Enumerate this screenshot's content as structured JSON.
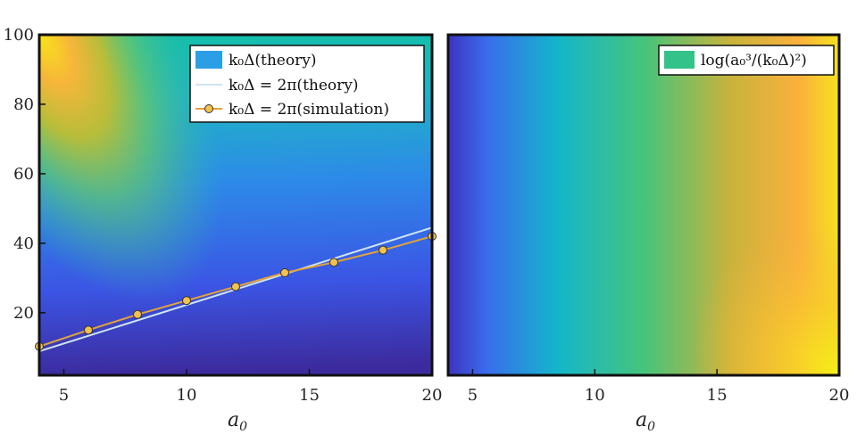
{
  "chart_data": [
    {
      "type": "heatmap",
      "panel": "left",
      "xlabel": "a",
      "xlabel_sub": "0",
      "xlim": [
        4,
        20
      ],
      "ylim": [
        2,
        100
      ],
      "xticks": [
        "5",
        "10",
        "15",
        "20"
      ],
      "yticks": [
        "20",
        "40",
        "60",
        "80",
        "100"
      ],
      "colormap": "parula",
      "grid": false,
      "legend_position": "top-right",
      "legend": [
        {
          "kind": "patch",
          "label": "k₀Δ(theory)",
          "color": "#2b9fe6"
        },
        {
          "kind": "line",
          "label": "k₀Δ = 2π(theory)",
          "color": "#cfe4f2"
        },
        {
          "kind": "line-marker",
          "label": "k₀Δ = 2π(simulation)",
          "color": "#e3a33a"
        }
      ],
      "series": [
        {
          "label_ref": "theory",
          "x": [
            4,
            20
          ],
          "y": [
            8.9,
            44.5
          ]
        },
        {
          "label_ref": "simulation",
          "x": [
            4,
            6,
            8,
            10,
            12,
            14,
            16,
            18,
            20
          ],
          "y": [
            10.3,
            15,
            19.5,
            23.5,
            27.5,
            31.5,
            34.5,
            38,
            42
          ]
        }
      ]
    },
    {
      "type": "heatmap",
      "panel": "right",
      "xlabel": "a",
      "xlabel_sub": "0",
      "xlim": [
        4,
        20
      ],
      "xticks": [
        "5",
        "10",
        "15",
        "20"
      ],
      "colormap": "parula",
      "grid": false,
      "legend_position": "top-right",
      "legend": [
        {
          "kind": "patch",
          "label": "log(a₀³/(k₀Δ)²)",
          "color": "#33c28a"
        }
      ]
    }
  ]
}
